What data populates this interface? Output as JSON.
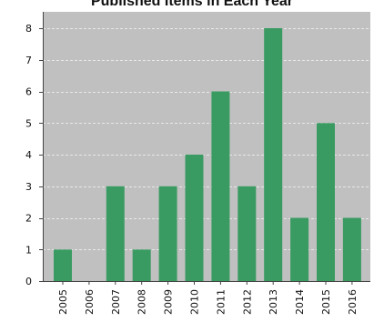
{
  "chart_data": {
    "type": "bar",
    "title": "Published Items in Each Year",
    "xlabel": "",
    "ylabel": "",
    "categories": [
      "2005",
      "2006",
      "2007",
      "2008",
      "2009",
      "2010",
      "2011",
      "2012",
      "2013",
      "2014",
      "2015",
      "2016"
    ],
    "values": [
      1,
      0,
      3,
      1,
      3,
      4,
      6,
      3,
      8,
      2,
      5,
      2
    ],
    "ylim": [
      0,
      8
    ],
    "yticks": [
      "0",
      "1",
      "2",
      "3",
      "4",
      "5",
      "6",
      "7",
      "8"
    ],
    "grid": true,
    "legend": "none",
    "colors": {
      "bar": "#3a9b62",
      "plot_background": "#c0c0c0",
      "grid": "#e8e8e8",
      "axis": "#444444"
    }
  }
}
